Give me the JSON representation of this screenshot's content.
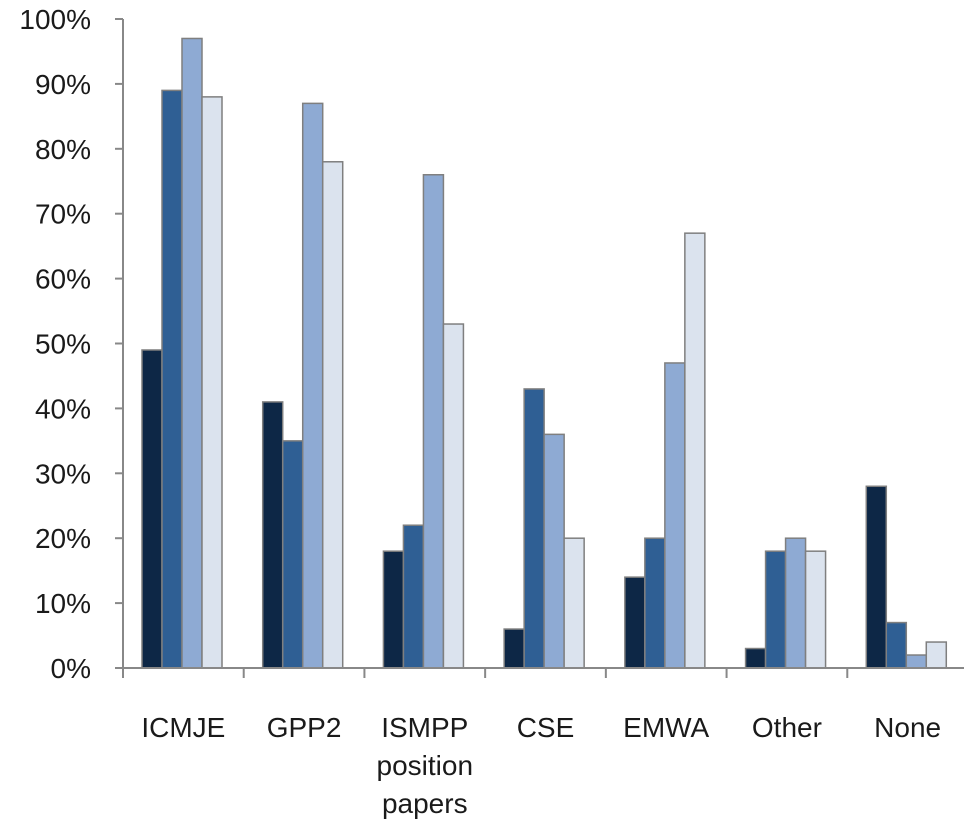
{
  "chart_data": {
    "type": "bar",
    "title": "",
    "xlabel": "",
    "ylabel": "",
    "ylim": [
      0,
      100
    ],
    "ytick_labels": [
      "0%",
      "10%",
      "20%",
      "30%",
      "40%",
      "50%",
      "60%",
      "70%",
      "80%",
      "90%",
      "100%"
    ],
    "grid": false,
    "legend": "none",
    "categories": [
      [
        "ICMJE"
      ],
      [
        "GPP2"
      ],
      [
        "ISMPP",
        "position",
        "papers"
      ],
      [
        "CSE"
      ],
      [
        "EMWA"
      ],
      [
        "Other"
      ],
      [
        "None"
      ]
    ],
    "series": [
      {
        "values": [
          49,
          41,
          18,
          6,
          14,
          3,
          28
        ]
      },
      {
        "values": [
          89,
          35,
          22,
          43,
          20,
          18,
          7
        ]
      },
      {
        "values": [
          97,
          87,
          76,
          36,
          47,
          20,
          2
        ]
      },
      {
        "values": [
          88,
          78,
          53,
          20,
          67,
          18,
          4
        ]
      }
    ]
  },
  "colors": {
    "series": [
      "#0d2746",
      "#2f5f94",
      "#8eaad3",
      "#dbe3ee"
    ],
    "bar_outline": "#7f7f7f",
    "axis": "#888888"
  }
}
